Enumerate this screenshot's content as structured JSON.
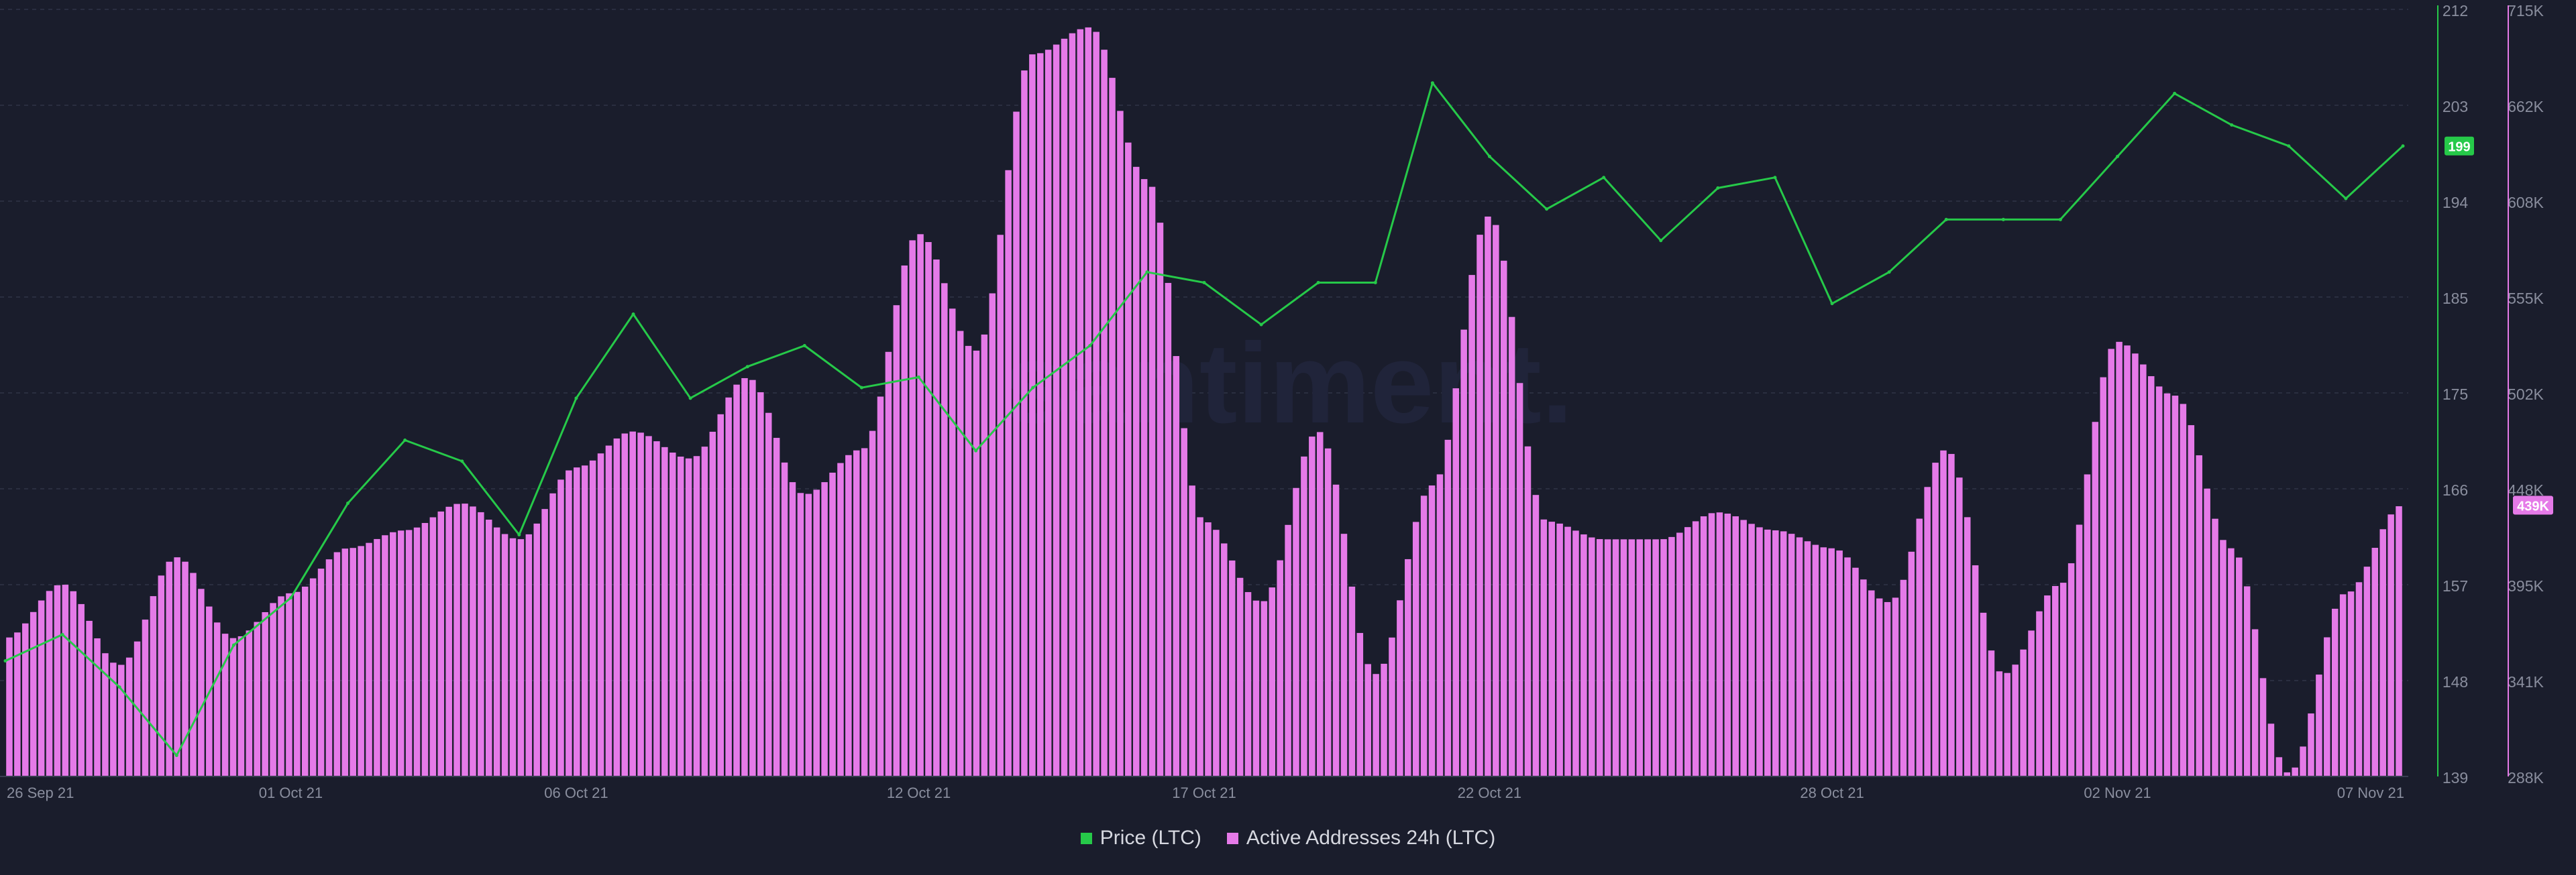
{
  "watermark": "santiment.",
  "legend": {
    "price_label": "Price (LTC)",
    "addresses_label": "Active Addresses 24h (LTC)"
  },
  "current": {
    "price_badge": "199",
    "addresses_badge": "439K"
  },
  "colors": {
    "background": "#1a1d2c",
    "price": "#26c949",
    "addresses": "#e57ae8",
    "grid": "#2a2e40",
    "axis_text": "#8a8e9e"
  },
  "chart_data": {
    "type": "bar",
    "x_range": [
      "2021-09-26",
      "2021-11-07"
    ],
    "x_ticks": [
      {
        "date": "2021-09-26",
        "label": "26 Sep 21"
      },
      {
        "date": "2021-10-01",
        "label": "01 Oct 21"
      },
      {
        "date": "2021-10-06",
        "label": "06 Oct 21"
      },
      {
        "date": "2021-10-12",
        "label": "12 Oct 21"
      },
      {
        "date": "2021-10-17",
        "label": "17 Oct 21"
      },
      {
        "date": "2021-10-22",
        "label": "22 Oct 21"
      },
      {
        "date": "2021-10-28",
        "label": "28 Oct 21"
      },
      {
        "date": "2021-11-02",
        "label": "02 Nov 21"
      },
      {
        "date": "2021-11-07",
        "label": "07 Nov 21"
      }
    ],
    "y_left": {
      "label": "Price (LTC)",
      "range": [
        139,
        212
      ],
      "ticks": [
        "212",
        "203",
        "194",
        "185",
        "175",
        "166",
        "157",
        "148",
        "139"
      ]
    },
    "y_right": {
      "label": "Active Addresses 24h (LTC)",
      "range": [
        288000,
        715000
      ],
      "ticks": [
        "715K",
        "662K",
        "608K",
        "555K",
        "502K",
        "448K",
        "395K",
        "341K",
        "288K"
      ]
    },
    "grid": true,
    "legend_position": "bottom-center",
    "series": [
      {
        "name": "Price (LTC)",
        "type": "line",
        "points": [
          [
            "2021-09-26",
            150.0
          ],
          [
            "2021-09-27",
            152.5
          ],
          [
            "2021-09-28",
            147.5
          ],
          [
            "2021-09-29",
            141.0
          ],
          [
            "2021-09-30",
            151.5
          ],
          [
            "2021-10-01",
            156.0
          ],
          [
            "2021-10-02",
            165.0
          ],
          [
            "2021-10-03",
            171.0
          ],
          [
            "2021-10-04",
            169.0
          ],
          [
            "2021-10-05",
            162.0
          ],
          [
            "2021-10-06",
            175.0
          ],
          [
            "2021-10-07",
            183.0
          ],
          [
            "2021-10-08",
            175.0
          ],
          [
            "2021-10-09",
            178.0
          ],
          [
            "2021-10-10",
            180.0
          ],
          [
            "2021-10-11",
            176.0
          ],
          [
            "2021-10-12",
            177.0
          ],
          [
            "2021-10-13",
            170.0
          ],
          [
            "2021-10-14",
            176.0
          ],
          [
            "2021-10-15",
            180.0
          ],
          [
            "2021-10-16",
            187.0
          ],
          [
            "2021-10-17",
            186.0
          ],
          [
            "2021-10-18",
            182.0
          ],
          [
            "2021-10-19",
            186.0
          ],
          [
            "2021-10-20",
            186.0
          ],
          [
            "2021-10-21",
            205.0
          ],
          [
            "2021-10-22",
            198.0
          ],
          [
            "2021-10-23",
            193.0
          ],
          [
            "2021-10-24",
            196.0
          ],
          [
            "2021-10-25",
            190.0
          ],
          [
            "2021-10-26",
            195.0
          ],
          [
            "2021-10-27",
            196.0
          ],
          [
            "2021-10-28",
            184.0
          ],
          [
            "2021-10-29",
            187.0
          ],
          [
            "2021-10-30",
            192.0
          ],
          [
            "2021-10-31",
            192.0
          ],
          [
            "2021-11-01",
            192.0
          ],
          [
            "2021-11-02",
            198.0
          ],
          [
            "2021-11-03",
            204.0
          ],
          [
            "2021-11-04",
            201.0
          ],
          [
            "2021-11-05",
            199.0
          ],
          [
            "2021-11-06",
            194.0
          ],
          [
            "2021-11-07",
            199.0
          ]
        ]
      },
      {
        "name": "Active Addresses 24h (LTC)",
        "type": "bar",
        "points": [
          [
            "2021-09-26",
            365000
          ],
          [
            "2021-09-27",
            395000
          ],
          [
            "2021-09-28",
            350000
          ],
          [
            "2021-09-29",
            410000
          ],
          [
            "2021-09-30",
            365000
          ],
          [
            "2021-10-01",
            390000
          ],
          [
            "2021-10-02",
            415000
          ],
          [
            "2021-10-03",
            425000
          ],
          [
            "2021-10-04",
            440000
          ],
          [
            "2021-10-05",
            420000
          ],
          [
            "2021-10-06",
            460000
          ],
          [
            "2021-10-07",
            480000
          ],
          [
            "2021-10-08",
            465000
          ],
          [
            "2021-10-09",
            510000
          ],
          [
            "2021-10-10",
            445000
          ],
          [
            "2021-10-11",
            470000
          ],
          [
            "2021-10-12",
            590000
          ],
          [
            "2021-10-13",
            525000
          ],
          [
            "2021-10-14",
            690000
          ],
          [
            "2021-10-15",
            705000
          ],
          [
            "2021-10-16",
            620000
          ],
          [
            "2021-10-17",
            430000
          ],
          [
            "2021-10-18",
            385000
          ],
          [
            "2021-10-19",
            480000
          ],
          [
            "2021-10-20",
            345000
          ],
          [
            "2021-10-21",
            450000
          ],
          [
            "2021-10-22",
            600000
          ],
          [
            "2021-10-23",
            430000
          ],
          [
            "2021-10-24",
            420000
          ],
          [
            "2021-10-25",
            420000
          ],
          [
            "2021-10-26",
            435000
          ],
          [
            "2021-10-27",
            425000
          ],
          [
            "2021-10-28",
            415000
          ],
          [
            "2021-10-29",
            385000
          ],
          [
            "2021-10-30",
            470000
          ],
          [
            "2021-10-31",
            345000
          ],
          [
            "2021-11-01",
            395000
          ],
          [
            "2021-11-02",
            530000
          ],
          [
            "2021-11-03",
            500000
          ],
          [
            "2021-11-04",
            415000
          ],
          [
            "2021-11-05",
            290000
          ],
          [
            "2021-11-06",
            390000
          ],
          [
            "2021-11-07",
            439000
          ]
        ]
      }
    ]
  }
}
